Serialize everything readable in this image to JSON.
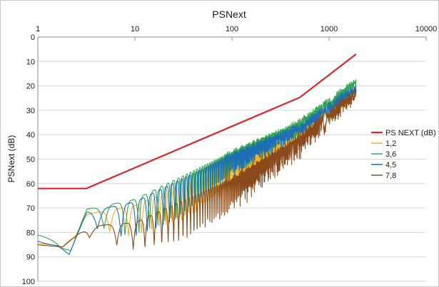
{
  "chart_data": {
    "type": "line",
    "title": "PSNext",
    "ylabel": "PSNext (dB)",
    "xlabel": "",
    "x_scale": "log",
    "x_position": "top",
    "xlim": [
      1,
      10000
    ],
    "x_ticks": [
      "1",
      "10",
      "100",
      "1000",
      "10000"
    ],
    "ylim": [
      0,
      100
    ],
    "y_inverted": true,
    "y_ticks": [
      "0",
      "10",
      "20",
      "30",
      "40",
      "50",
      "60",
      "70",
      "80",
      "90",
      "100"
    ],
    "grid": "horizontal",
    "legend_position": "right",
    "series": [
      {
        "name": "PS NEXT (dB)",
        "color": "#d9272e",
        "style": "smooth",
        "points": [
          [
            1,
            62
          ],
          [
            3.15,
            62
          ],
          [
            500,
            24.7
          ],
          [
            1900,
            7
          ]
        ]
      },
      {
        "name": "1,2",
        "color": "#f6b21f",
        "style": "oscillating",
        "envelope": [
          [
            1,
            84.5
          ],
          [
            1.8,
            85.5
          ],
          [
            3.2,
            72.5
          ],
          [
            10,
            69
          ],
          [
            100,
            52.5
          ],
          [
            500,
            38
          ],
          [
            1900,
            22
          ]
        ],
        "ripple_depth": [
          [
            1,
            0.5
          ],
          [
            3,
            4
          ],
          [
            8,
            12
          ],
          [
            30,
            14
          ],
          [
            100,
            10
          ],
          [
            500,
            6
          ],
          [
            1900,
            3
          ]
        ]
      },
      {
        "name": "3,6",
        "color": "#33a852",
        "style": "oscillating",
        "envelope": [
          [
            1,
            81
          ],
          [
            1.6,
            83
          ],
          [
            2.2,
            86.5
          ],
          [
            3.2,
            70.5
          ],
          [
            10,
            66.5
          ],
          [
            100,
            47
          ],
          [
            500,
            35
          ],
          [
            1900,
            18
          ]
        ],
        "ripple_depth": [
          [
            1,
            0.5
          ],
          [
            3,
            5
          ],
          [
            8,
            14
          ],
          [
            30,
            16
          ],
          [
            100,
            10
          ],
          [
            500,
            5
          ],
          [
            1900,
            3
          ]
        ]
      },
      {
        "name": "4,5",
        "color": "#1f6fb5",
        "style": "oscillating",
        "envelope": [
          [
            1,
            83
          ],
          [
            1.6,
            85
          ],
          [
            2.1,
            89
          ],
          [
            3.2,
            71.5
          ],
          [
            10,
            67.5
          ],
          [
            100,
            48
          ],
          [
            500,
            36.5
          ],
          [
            1900,
            20.5
          ]
        ],
        "ripple_depth": [
          [
            1,
            0.5
          ],
          [
            3,
            5
          ],
          [
            8,
            14
          ],
          [
            30,
            16
          ],
          [
            100,
            10
          ],
          [
            500,
            5
          ],
          [
            1900,
            3
          ]
        ]
      },
      {
        "name": "7,8",
        "color": "#8b4a1c",
        "style": "oscillating",
        "envelope": [
          [
            1,
            85
          ],
          [
            1.8,
            86
          ],
          [
            3.2,
            77.5
          ],
          [
            10,
            76
          ],
          [
            100,
            58
          ],
          [
            500,
            41
          ],
          [
            1900,
            22
          ]
        ],
        "ripple_depth": [
          [
            1,
            0.5
          ],
          [
            3,
            4
          ],
          [
            8,
            10
          ],
          [
            30,
            16
          ],
          [
            100,
            14
          ],
          [
            500,
            8
          ],
          [
            1900,
            4
          ]
        ]
      }
    ]
  }
}
